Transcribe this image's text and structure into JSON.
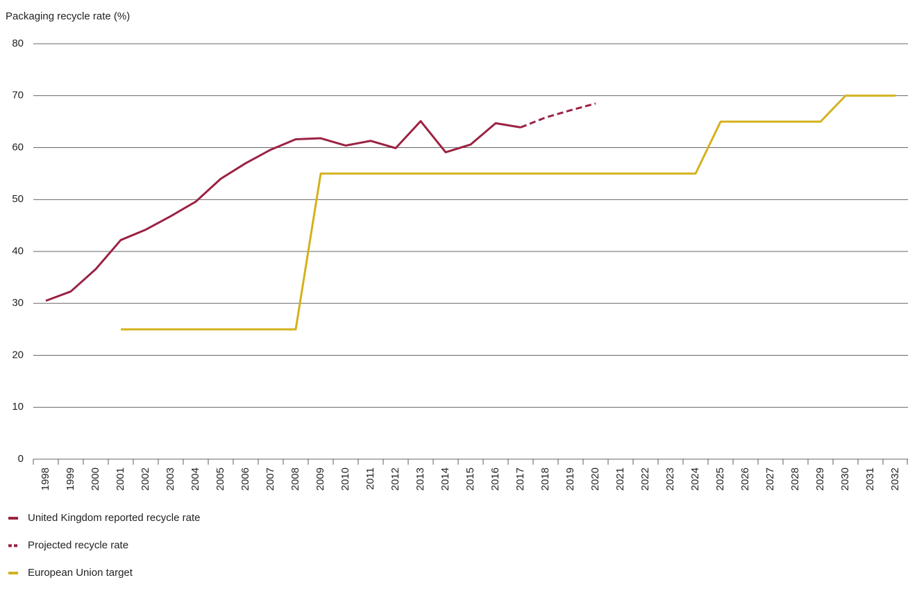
{
  "chart_data": {
    "type": "line",
    "ylabel": "Packaging recycle rate (%)",
    "categories": [
      "1998",
      "1999",
      "2000",
      "2001",
      "2002",
      "2003",
      "2004",
      "2005",
      "2006",
      "2007",
      "2008",
      "2009",
      "2010",
      "2011",
      "2012",
      "2013",
      "2014",
      "2015",
      "2016",
      "2017",
      "2018",
      "2019",
      "2020",
      "2021",
      "2022",
      "2023",
      "2024",
      "2025",
      "2026",
      "2027",
      "2028",
      "2029",
      "2030",
      "2031",
      "2032"
    ],
    "series": [
      {
        "name": "United Kingdom reported recycle rate",
        "color": "#9b2242",
        "dashed": false,
        "values": [
          30.5,
          32.3,
          36.6,
          42.2,
          44.2,
          46.8,
          49.6,
          54.0,
          57.0,
          59.6,
          61.6,
          61.8,
          60.4,
          61.3,
          59.9,
          65.1,
          59.1,
          60.6,
          64.7,
          63.9,
          null,
          null,
          null,
          null,
          null,
          null,
          null,
          null,
          null,
          null,
          null,
          null,
          null,
          null,
          null
        ]
      },
      {
        "name": "Projected recycle rate",
        "color": "#9b2242",
        "dashed": true,
        "values": [
          null,
          null,
          null,
          null,
          null,
          null,
          null,
          null,
          null,
          null,
          null,
          null,
          null,
          null,
          null,
          null,
          null,
          null,
          null,
          63.9,
          65.8,
          67.2,
          68.5,
          null,
          null,
          null,
          null,
          null,
          null,
          null,
          null,
          null,
          null,
          null,
          null
        ]
      },
      {
        "name": "European Union target",
        "color": "#d4b11c",
        "dashed": false,
        "values": [
          null,
          null,
          null,
          25,
          25,
          25,
          25,
          25,
          25,
          25,
          25,
          55,
          55,
          55,
          55,
          55,
          55,
          55,
          55,
          55,
          55,
          55,
          55,
          55,
          55,
          55,
          55,
          65,
          65,
          65,
          65,
          65,
          70,
          70,
          70
        ]
      }
    ],
    "ylim": [
      0,
      80
    ],
    "yticks": [
      0,
      10,
      20,
      30,
      40,
      50,
      60,
      70,
      80
    ],
    "grid": true,
    "legend": "bottom-left"
  }
}
